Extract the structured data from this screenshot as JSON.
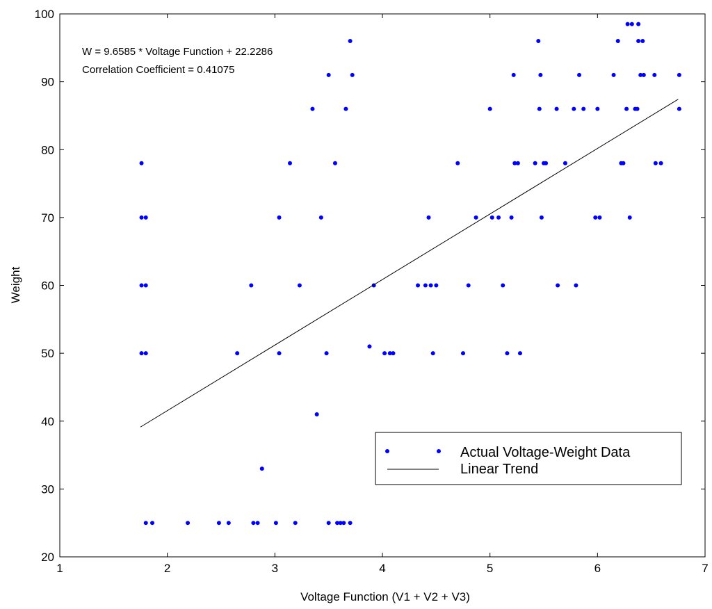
{
  "chart_data": {
    "type": "scatter",
    "title": "",
    "xlabel": "Voltage Function (V1 + V2 + V3)",
    "ylabel": "Weight",
    "xlim": [
      1,
      7
    ],
    "ylim": [
      20,
      100
    ],
    "xticks": [
      1,
      2,
      3,
      4,
      5,
      6,
      7
    ],
    "yticks": [
      20,
      30,
      40,
      50,
      60,
      70,
      80,
      90,
      100
    ],
    "grid": false,
    "legend_position": "bottom-right",
    "annotations": [
      "W = 9.6585 * Voltage Function + 22.2286",
      "Correlation Coefficient = 0.41075"
    ],
    "series": [
      {
        "name": "Actual Voltage-Weight Data",
        "kind": "scatter",
        "color": "#0000ff",
        "points": [
          [
            1.76,
            78
          ],
          [
            1.76,
            70
          ],
          [
            1.8,
            70
          ],
          [
            1.76,
            60
          ],
          [
            1.8,
            60
          ],
          [
            1.76,
            50
          ],
          [
            1.8,
            50
          ],
          [
            1.8,
            25
          ],
          [
            1.86,
            25
          ],
          [
            2.19,
            25
          ],
          [
            2.48,
            25
          ],
          [
            2.57,
            25
          ],
          [
            2.65,
            50
          ],
          [
            2.78,
            60
          ],
          [
            2.8,
            25
          ],
          [
            2.84,
            25
          ],
          [
            2.88,
            33
          ],
          [
            3.01,
            25
          ],
          [
            3.04,
            70
          ],
          [
            3.04,
            50
          ],
          [
            3.14,
            78
          ],
          [
            3.19,
            25
          ],
          [
            3.23,
            60
          ],
          [
            3.35,
            86
          ],
          [
            3.39,
            41
          ],
          [
            3.43,
            70
          ],
          [
            3.48,
            50
          ],
          [
            3.5,
            91
          ],
          [
            3.5,
            25
          ],
          [
            3.56,
            78
          ],
          [
            3.58,
            25
          ],
          [
            3.61,
            25
          ],
          [
            3.64,
            25
          ],
          [
            3.66,
            86
          ],
          [
            3.7,
            96
          ],
          [
            3.72,
            91
          ],
          [
            3.7,
            25
          ],
          [
            3.88,
            51
          ],
          [
            3.92,
            60
          ],
          [
            4.02,
            50
          ],
          [
            4.07,
            50
          ],
          [
            4.1,
            50
          ],
          [
            4.33,
            60
          ],
          [
            4.4,
            60
          ],
          [
            4.43,
            70
          ],
          [
            4.45,
            60
          ],
          [
            4.47,
            50
          ],
          [
            4.5,
            60
          ],
          [
            4.7,
            78
          ],
          [
            4.75,
            50
          ],
          [
            4.8,
            60
          ],
          [
            4.87,
            70
          ],
          [
            5.0,
            86
          ],
          [
            5.02,
            70
          ],
          [
            5.08,
            70
          ],
          [
            5.12,
            60
          ],
          [
            5.16,
            50
          ],
          [
            5.2,
            70
          ],
          [
            5.22,
            91
          ],
          [
            5.23,
            78
          ],
          [
            5.28,
            50
          ],
          [
            5.26,
            78
          ],
          [
            5.42,
            78
          ],
          [
            5.45,
            96
          ],
          [
            5.46,
            86
          ],
          [
            5.47,
            91
          ],
          [
            5.48,
            70
          ],
          [
            5.5,
            78
          ],
          [
            5.52,
            78
          ],
          [
            5.62,
            86
          ],
          [
            5.63,
            60
          ],
          [
            5.7,
            78
          ],
          [
            5.78,
            86
          ],
          [
            5.8,
            60
          ],
          [
            5.83,
            91
          ],
          [
            5.87,
            86
          ],
          [
            5.98,
            70
          ],
          [
            6.0,
            86
          ],
          [
            6.02,
            70
          ],
          [
            6.15,
            91
          ],
          [
            6.19,
            96
          ],
          [
            6.22,
            78
          ],
          [
            6.24,
            78
          ],
          [
            6.27,
            86
          ],
          [
            6.28,
            98.5
          ],
          [
            6.3,
            70
          ],
          [
            6.32,
            98.5
          ],
          [
            6.35,
            86
          ],
          [
            6.37,
            86
          ],
          [
            6.38,
            96
          ],
          [
            6.38,
            98.5
          ],
          [
            6.4,
            91
          ],
          [
            6.42,
            96
          ],
          [
            6.43,
            91
          ],
          [
            6.53,
            91
          ],
          [
            6.54,
            78
          ],
          [
            6.59,
            78
          ],
          [
            6.76,
            91
          ],
          [
            6.76,
            86
          ]
        ]
      },
      {
        "name": "Linear Trend",
        "kind": "line",
        "color": "#000000",
        "x": [
          1.75,
          6.75
        ],
        "y": [
          39.13,
          87.42
        ]
      }
    ]
  }
}
